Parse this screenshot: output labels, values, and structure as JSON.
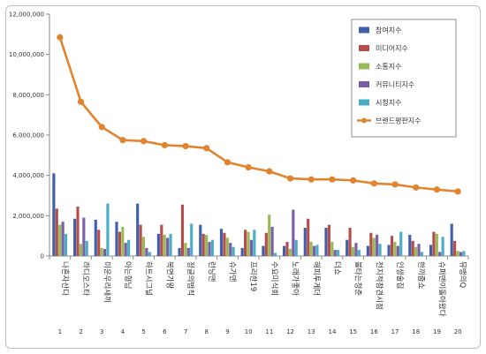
{
  "chart_data": {
    "type": "bar",
    "categories": [
      "나혼자산다",
      "라디오스타",
      "미운우리새끼",
      "아는형님",
      "하트시그널",
      "복면가왕",
      "정글의법칙",
      "런닝맨",
      "슈가맨",
      "프리한19",
      "수요미식회",
      "노래가좋아",
      "해피투게더",
      "더쇼",
      "불타는청춘",
      "전지적참견시점",
      "인생술집",
      "한끼줍쇼",
      "슈퍼맨이돌아왔다",
      "뮤뱅의Q"
    ],
    "x": [
      "1",
      "2",
      "3",
      "4",
      "5",
      "6",
      "7",
      "8",
      "9",
      "10",
      "11",
      "12",
      "13",
      "14",
      "15",
      "16",
      "17",
      "18",
      "19",
      "20"
    ],
    "ylim": [
      0,
      12000000
    ],
    "yticks": [
      "0",
      "2,000,000",
      "4,000,000",
      "6,000,000",
      "8,000,000",
      "10,000,000",
      "12,000,000"
    ],
    "ytick_values": [
      0,
      2000000,
      4000000,
      6000000,
      8000000,
      10000000,
      12000000
    ],
    "legend_position": "top-right",
    "series": [
      {
        "name": "참여지수",
        "type": "bar",
        "color": "#3F5FA8",
        "values": [
          4100000,
          1850000,
          1800000,
          1700000,
          2600000,
          1100000,
          400000,
          1550000,
          1350000,
          400000,
          500000,
          500000,
          1400000,
          1400000,
          800000,
          500000,
          550000,
          1050000,
          550000,
          1600000
        ]
      },
      {
        "name": "미디어지수",
        "type": "bar",
        "color": "#B54D4B",
        "values": [
          2350000,
          2450000,
          1300000,
          1200000,
          1550000,
          1550000,
          2550000,
          1100000,
          1150000,
          1300000,
          1150000,
          700000,
          1850000,
          1550000,
          1400000,
          1150000,
          1000000,
          750000,
          1200000,
          750000
        ]
      },
      {
        "name": "소통지수",
        "type": "bar",
        "color": "#98B954",
        "values": [
          1550000,
          600000,
          400000,
          1450000,
          950000,
          1050000,
          650000,
          1050000,
          900000,
          1200000,
          2050000,
          350000,
          700000,
          700000,
          450000,
          900000,
          700000,
          450000,
          1100000,
          250000
        ]
      },
      {
        "name": "커뮤니티지수",
        "type": "bar",
        "color": "#7B5EA7",
        "values": [
          1700000,
          1900000,
          350000,
          650000,
          400000,
          900000,
          400000,
          700000,
          650000,
          800000,
          1450000,
          2300000,
          500000,
          300000,
          650000,
          1050000,
          500000,
          600000,
          200000,
          200000
        ]
      },
      {
        "name": "시청지수",
        "type": "bar",
        "color": "#4BACC6",
        "values": [
          1100000,
          750000,
          2600000,
          800000,
          200000,
          1100000,
          1600000,
          800000,
          450000,
          1300000,
          150000,
          800000,
          550000,
          300000,
          300000,
          600000,
          1200000,
          200000,
          950000,
          250000
        ]
      },
      {
        "name": "브랜드평판지수",
        "type": "line",
        "color": "#E1842F",
        "values": [
          10850000,
          7650000,
          6400000,
          5750000,
          5700000,
          5500000,
          5450000,
          5350000,
          4650000,
          4400000,
          4200000,
          3850000,
          3800000,
          3800000,
          3750000,
          3600000,
          3550000,
          3400000,
          3300000,
          3200000
        ]
      }
    ]
  }
}
